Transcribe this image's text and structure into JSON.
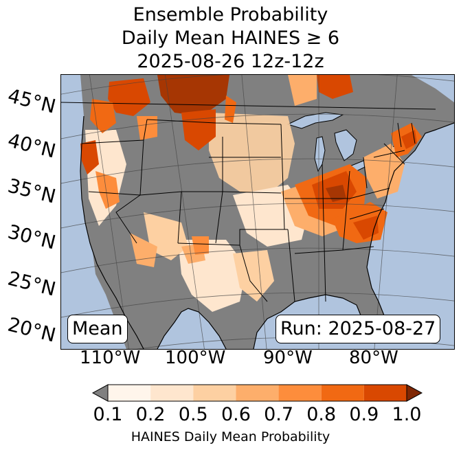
{
  "title": {
    "line1": "Ensemble Probability",
    "line2": "Daily Mean HAINES ≥ 6",
    "line3": "2025-08-26 12z-12z"
  },
  "map": {
    "type": "probability map (Lambert conformal, CONUS)",
    "lat_labels": [
      "45°N",
      "40°N",
      "35°N",
      "30°N",
      "25°N",
      "20°N"
    ],
    "lon_labels": [
      "110°W",
      "100°W",
      "90°W",
      "80°W"
    ],
    "mean_label": "Mean",
    "run_label": "Run: 2025-08-27",
    "colors": {
      "ocean": "#b0c4de",
      "below_threshold": "#808080",
      "borders": "#000000"
    },
    "high_probability_regions": [
      "Northern Rockies (Montana / Idaho)",
      "Pacific Northwest (Washington / Oregon)",
      "Northern California",
      "Ohio Valley / Kentucky / Tennessee",
      "Carolinas / Georgia",
      "Mid-Atlantic / Northeast coast",
      "Central Canada (north of Great Lakes)"
    ]
  },
  "colorbar": {
    "label": "HAINES Daily Mean Probability",
    "ticks": [
      "0.1",
      "0.2",
      "0.5",
      "0.6",
      "0.7",
      "0.8",
      "0.9",
      "1.0"
    ],
    "colors": [
      "#fff5eb",
      "#fee6ce",
      "#fdd0a2",
      "#fdae6b",
      "#fd8d3c",
      "#f16913",
      "#d94801",
      "#a63603"
    ],
    "under_color": "#808080",
    "over_color": "#7f2704"
  }
}
